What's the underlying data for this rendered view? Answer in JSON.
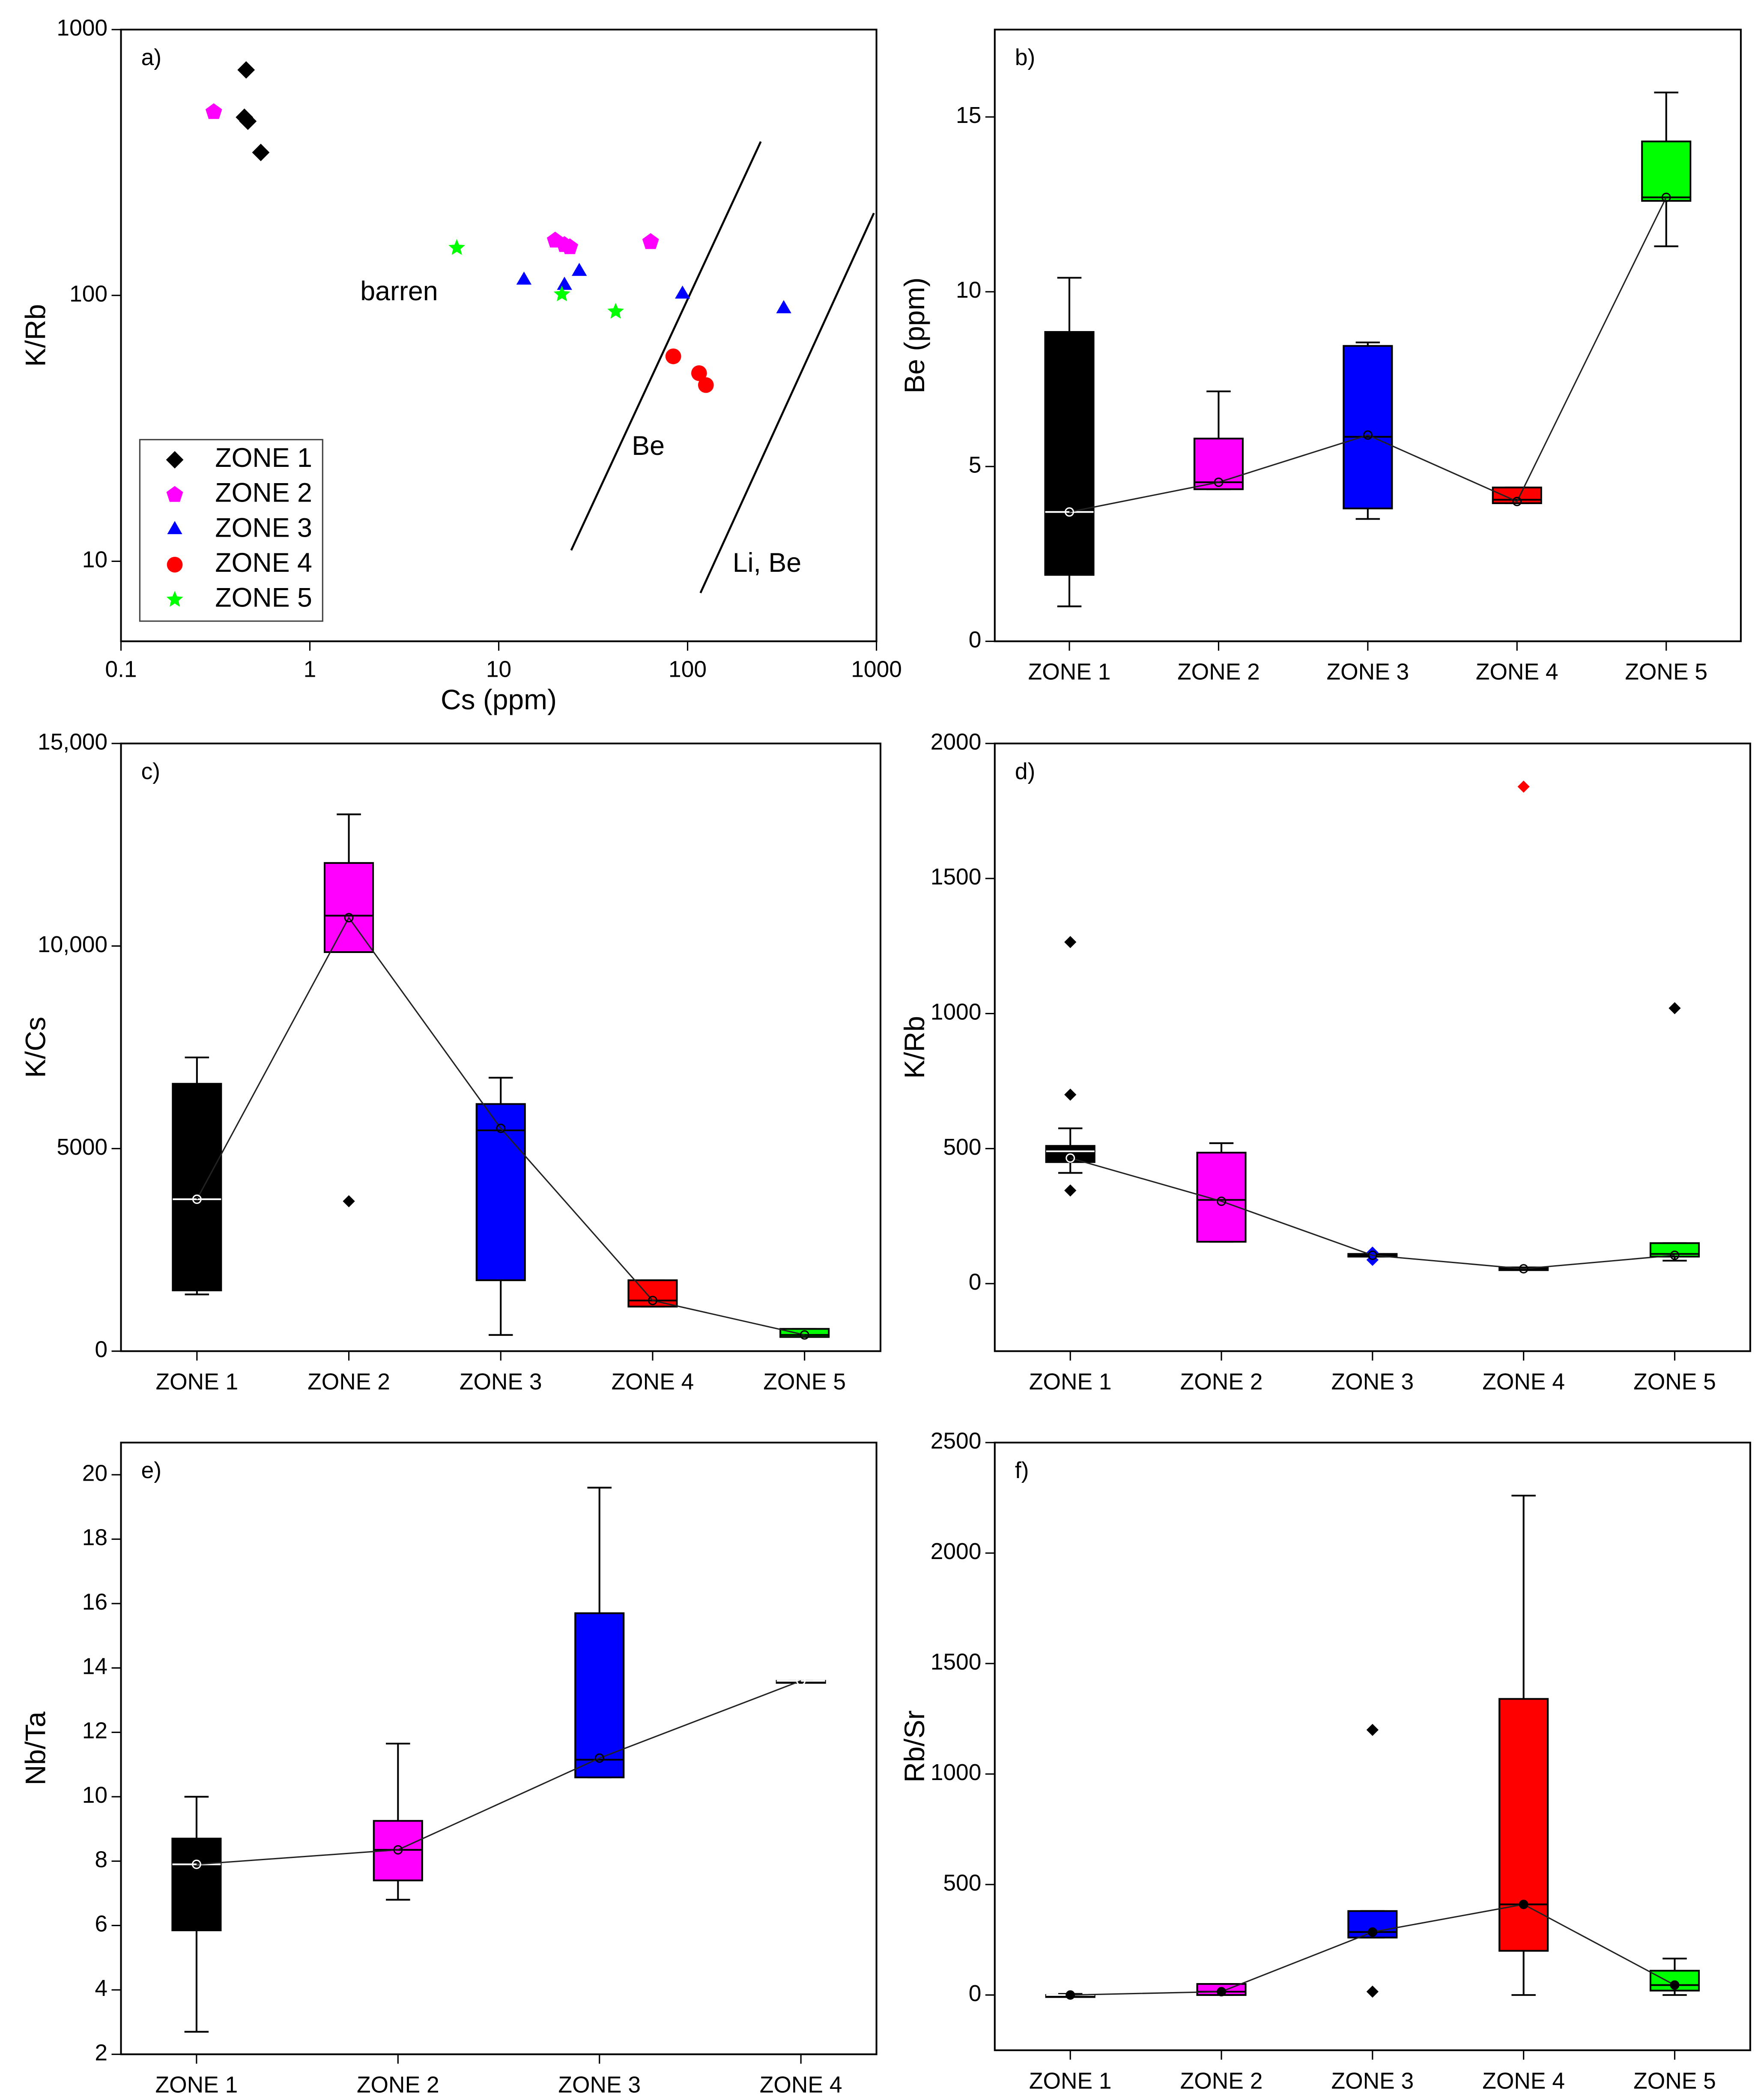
{
  "chart_data": [
    {
      "type": "scatter",
      "panel": "a)",
      "xlabel": "Cs (ppm)",
      "ylabel": "K/Rb",
      "xlog": true,
      "ylog": true,
      "xlim": [
        0.1,
        1000
      ],
      "ylim": [
        5,
        1000
      ],
      "xticks": [
        0.1,
        1,
        10,
        100,
        1000
      ],
      "yticks": [
        10,
        100,
        1000
      ],
      "legend": "lower left",
      "series": [
        {
          "name": "ZONE 1",
          "color": "#000000",
          "marker": "diamond",
          "x": [
            0.46,
            0.45,
            0.47,
            0.55
          ],
          "y": [
            705,
            468,
            452,
            345
          ]
        },
        {
          "name": "ZONE 2",
          "color": "#ff00ff",
          "marker": "pentagon",
          "x": [
            0.31,
            19.9,
            22.3,
            23.8,
            63.7
          ],
          "y": [
            490,
            161,
            155,
            152,
            159
          ]
        },
        {
          "name": "ZONE 3",
          "color": "#0000ff",
          "marker": "triangle",
          "x": [
            13.6,
            22.3,
            26.7,
            94,
            323
          ],
          "y": [
            114,
            109,
            123,
            101,
            89
          ]
        },
        {
          "name": "ZONE 4",
          "color": "#ff0000",
          "marker": "circle",
          "x": [
            84,
            115,
            125
          ],
          "y": [
            59,
            51,
            46
          ]
        },
        {
          "name": "ZONE 5",
          "color": "#00ff00",
          "marker": "star",
          "x": [
            6.0,
            21.6,
            41.6
          ],
          "y": [
            151,
            101,
            87
          ]
        }
      ],
      "lines": [
        {
          "x": [
            24.2,
            244
          ],
          "y": [
            11,
            379
          ]
        },
        {
          "x": [
            117,
            969
          ],
          "y": [
            7.6,
            204
          ]
        }
      ],
      "annotations": [
        "barren",
        "Be",
        "Li, Be"
      ]
    },
    {
      "type": "box",
      "panel": "b)",
      "ylabel": "Be (ppm)",
      "ylim": [
        0,
        17.5
      ],
      "yticks": [
        0,
        5,
        10,
        15
      ],
      "categories": [
        "ZONE 1",
        "ZONE 2",
        "ZONE 3",
        "ZONE 4",
        "ZONE 5"
      ],
      "colors": [
        "#000000",
        "#ff00ff",
        "#0000ff",
        "#ff0000",
        "#00ff00"
      ],
      "mean_marker": "open",
      "boxes": [
        {
          "min": 1.0,
          "q1": 1.9,
          "median": 3.7,
          "q3": 8.85,
          "max": 10.4,
          "mean": 3.7,
          "outliers": []
        },
        {
          "min": 4.35,
          "q1": 4.35,
          "median": 4.55,
          "q3": 5.8,
          "max": 7.15,
          "mean": 4.55,
          "outliers": []
        },
        {
          "min": 3.5,
          "q1": 3.8,
          "median": 5.85,
          "q3": 8.45,
          "max": 8.55,
          "mean": 5.9,
          "outliers": []
        },
        {
          "min": 3.95,
          "q1": 3.95,
          "median": 4.05,
          "q3": 4.4,
          "max": 4.4,
          "mean": 4.0,
          "outliers": []
        },
        {
          "min": 11.3,
          "q1": 12.6,
          "median": 12.7,
          "q3": 14.3,
          "max": 15.7,
          "mean": 12.7,
          "outliers": []
        }
      ]
    },
    {
      "type": "box",
      "panel": "c)",
      "ylabel": "K/Cs",
      "ylim": [
        0,
        15000
      ],
      "yticks": [
        0,
        5000,
        {
          "value": 10000,
          "label": "10,000"
        },
        {
          "value": 15000,
          "label": "15,000"
        }
      ],
      "categories": [
        "ZONE 1",
        "ZONE 2",
        "ZONE 3",
        "ZONE 4",
        "ZONE 5"
      ],
      "colors": [
        "#000000",
        "#ff00ff",
        "#0000ff",
        "#ff0000",
        "#00ff00"
      ],
      "mean_marker": "open",
      "outlier_colors": [
        "#000000",
        "#000000",
        "#000000",
        "#000000",
        "#000000"
      ],
      "boxes": [
        {
          "min": 1400,
          "q1": 1500,
          "median": 3750,
          "q3": 6600,
          "max": 7250,
          "mean": 3750,
          "outliers": []
        },
        {
          "min": 9850,
          "q1": 9850,
          "median": 10750,
          "q3": 12050,
          "max": 13250,
          "mean": 10700,
          "outliers": [
            3700
          ]
        },
        {
          "min": 400,
          "q1": 1750,
          "median": 5450,
          "q3": 6100,
          "max": 6750,
          "mean": 5500,
          "outliers": []
        },
        {
          "min": 1100,
          "q1": 1100,
          "median": 1250,
          "q3": 1750,
          "max": 1750,
          "mean": 1250,
          "outliers": []
        },
        {
          "min": 350,
          "q1": 350,
          "median": 400,
          "q3": 550,
          "max": 550,
          "mean": 400,
          "outliers": []
        }
      ]
    },
    {
      "type": "box",
      "panel": "d)",
      "ylabel": "K/Rb",
      "ylim": [
        -250,
        2000
      ],
      "yticks": [
        0,
        500,
        1000,
        1500,
        2000
      ],
      "categories": [
        "ZONE 1",
        "ZONE 2",
        "ZONE 3",
        "ZONE 4",
        "ZONE 5"
      ],
      "colors": [
        "#000000",
        "#ff00ff",
        "#0000ff",
        "#ff0000",
        "#00ff00"
      ],
      "mean_marker": "open",
      "outlier_colors": [
        "#000000",
        "#000000",
        "#0000ff",
        "#ff0000",
        "#000000"
      ],
      "boxes": [
        {
          "min": 410,
          "q1": 450,
          "median": 490,
          "q3": 510,
          "max": 575,
          "mean": 465,
          "outliers": [
            1265,
            700,
            345
          ]
        },
        {
          "min": 155,
          "q1": 155,
          "median": 310,
          "q3": 485,
          "max": 520,
          "mean": 305,
          "outliers": []
        },
        {
          "min": 100,
          "q1": 100,
          "median": 105,
          "q3": 110,
          "max": 110,
          "mean": 105,
          "outliers": [
            115,
            88
          ]
        },
        {
          "min": 50,
          "q1": 50,
          "median": 55,
          "q3": 60,
          "max": 60,
          "mean": 55,
          "outliers": [
            1840
          ]
        },
        {
          "min": 85,
          "q1": 100,
          "median": 110,
          "q3": 150,
          "max": 150,
          "mean": 105,
          "outliers": [
            1020
          ]
        }
      ]
    },
    {
      "type": "box",
      "panel": "e)",
      "ylabel": "Nb/Ta",
      "ylim": [
        2,
        21
      ],
      "yticks": [
        2,
        4,
        6,
        8,
        10,
        12,
        14,
        16,
        18,
        20
      ],
      "categories": [
        "ZONE 1",
        "ZONE 2",
        "ZONE 3",
        "ZONE 4"
      ],
      "colors": [
        "#000000",
        "#ff00ff",
        "#0000ff",
        "#000000"
      ],
      "mean_marker": "open",
      "boxes": [
        {
          "min": 2.7,
          "q1": 5.85,
          "median": 7.9,
          "q3": 8.7,
          "max": 10,
          "mean": 7.9,
          "outliers": []
        },
        {
          "min": 6.8,
          "q1": 7.4,
          "median": 8.35,
          "q3": 9.25,
          "max": 11.65,
          "mean": 8.35,
          "outliers": []
        },
        {
          "min": 10.6,
          "q1": 10.6,
          "median": 11.15,
          "q3": 15.7,
          "max": 19.6,
          "mean": 11.2,
          "outliers": []
        },
        {
          "min": 13.6,
          "q1": 13.6,
          "median": 13.6,
          "q3": 13.6,
          "max": 13.6,
          "mean": 13.6,
          "outliers": []
        }
      ]
    },
    {
      "type": "box",
      "panel": "f)",
      "ylabel": "Rb/Sr",
      "ylim": [
        -250,
        2500
      ],
      "yticks": [
        0,
        500,
        1000,
        1500,
        2000,
        2500
      ],
      "categories": [
        "ZONE 1",
        "ZONE 2",
        "ZONE 3",
        "ZONE 4",
        "ZONE 5"
      ],
      "colors": [
        "#000000",
        "#ff00ff",
        "#0000ff",
        "#ff0000",
        "#00ff00"
      ],
      "mean_marker": "filled",
      "outlier_colors": [
        "#000000",
        "#000000",
        "#000000",
        "#000000",
        "#000000"
      ],
      "boxes": [
        {
          "min": 0,
          "q1": 0,
          "median": 0,
          "q3": 0,
          "max": 5,
          "mean": 0,
          "outliers": []
        },
        {
          "min": 0,
          "q1": 0,
          "median": 15,
          "q3": 50,
          "max": 50,
          "mean": 15,
          "outliers": []
        },
        {
          "min": 260,
          "q1": 260,
          "median": 285,
          "q3": 380,
          "max": 380,
          "mean": 285,
          "outliers": [
            1200,
            15
          ]
        },
        {
          "min": 0,
          "q1": 200,
          "median": 410,
          "q3": 1340,
          "max": 2260,
          "mean": 410,
          "outliers": []
        },
        {
          "min": 0,
          "q1": 20,
          "median": 45,
          "q3": 110,
          "max": 165,
          "mean": 45,
          "outliers": []
        }
      ]
    }
  ]
}
